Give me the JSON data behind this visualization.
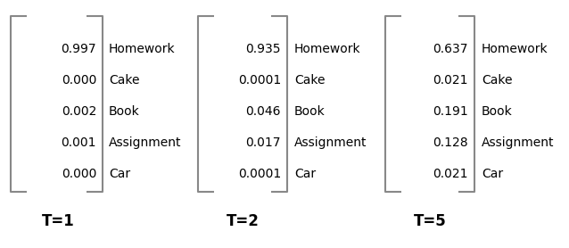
{
  "matrices": [
    {
      "label": "T=1",
      "values": [
        "0.997",
        "0.000",
        "0.002",
        "0.001",
        "0.000"
      ],
      "categories": [
        "Homework",
        "Cake",
        "Book",
        "Assignment",
        "Car"
      ]
    },
    {
      "label": "T=2",
      "values": [
        "0.935",
        "0.0001",
        "0.046",
        "0.017",
        "0.0001"
      ],
      "categories": [
        "Homework",
        "Cake",
        "Book",
        "Assignment",
        "Car"
      ]
    },
    {
      "label": "T=5",
      "values": [
        "0.637",
        "0.021",
        "0.191",
        "0.128",
        "0.021"
      ],
      "categories": [
        "Homework",
        "Cake",
        "Book",
        "Assignment",
        "Car"
      ]
    }
  ],
  "bracket_color": "#888888",
  "text_color": "#000000",
  "background_color": "#ffffff",
  "value_fontsize": 10,
  "category_fontsize": 10,
  "label_fontsize": 12,
  "figsize": [
    6.38,
    2.78
  ],
  "dpi": 100
}
